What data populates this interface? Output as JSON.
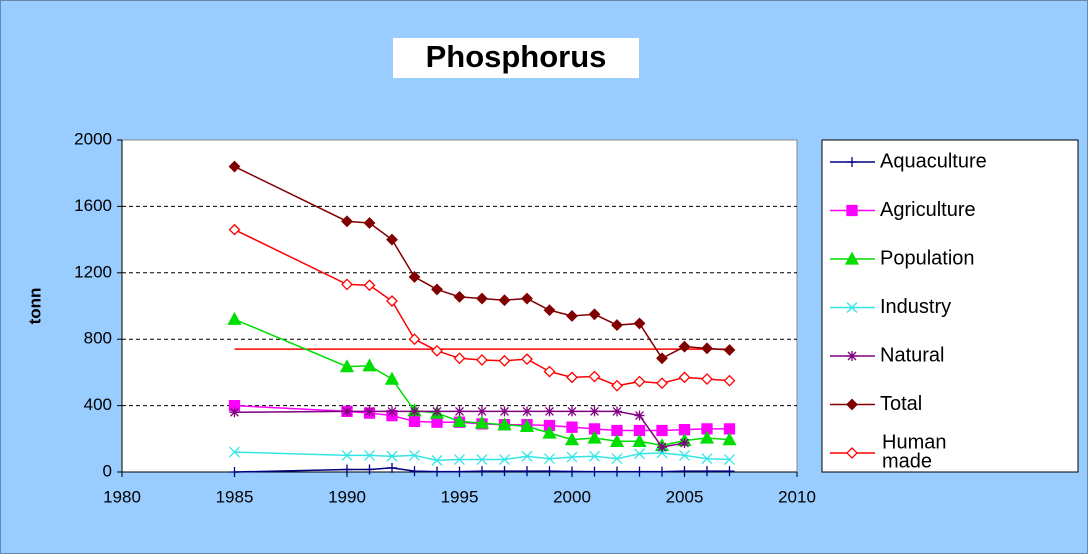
{
  "chart_data": {
    "type": "line",
    "title": "Phosphorus",
    "y_label": "tonn",
    "x": [
      1985,
      1990,
      1991,
      1992,
      1993,
      1994,
      1995,
      1996,
      1997,
      1998,
      1999,
      2000,
      2001,
      2002,
      2003,
      2004,
      2005,
      2006,
      2007
    ],
    "xlim": [
      1980,
      2010
    ],
    "xticks": [
      1980,
      1985,
      1990,
      1995,
      2000,
      2005,
      2010
    ],
    "ylim": [
      0,
      2000
    ],
    "yticks": [
      0,
      400,
      800,
      1200,
      1600,
      2000
    ],
    "grid": true,
    "legend": "right",
    "series": [
      {
        "name": "Aquaculture",
        "color": "#000080",
        "marker": "plus",
        "values": [
          0,
          15,
          15,
          25,
          5,
          2,
          2,
          5,
          5,
          5,
          5,
          3,
          2,
          2,
          2,
          2,
          5,
          5,
          5
        ]
      },
      {
        "name": "Agriculture",
        "color": "#ff00ff",
        "marker": "square",
        "values": [
          400,
          365,
          355,
          340,
          305,
          300,
          300,
          290,
          285,
          285,
          280,
          270,
          260,
          250,
          250,
          250,
          255,
          260,
          260
        ]
      },
      {
        "name": "Population",
        "color": "#00dd00",
        "marker": "triangle",
        "values": [
          920,
          635,
          640,
          560,
          370,
          355,
          305,
          295,
          285,
          275,
          235,
          195,
          205,
          185,
          185,
          160,
          190,
          205,
          195
        ]
      },
      {
        "name": "Industry",
        "color": "#33e6e6",
        "marker": "cross",
        "values": [
          120,
          100,
          100,
          95,
          100,
          70,
          75,
          75,
          75,
          95,
          80,
          90,
          95,
          80,
          110,
          115,
          100,
          80,
          75
        ]
      },
      {
        "name": "Natural",
        "color": "#800080",
        "marker": "star",
        "values": [
          360,
          365,
          365,
          365,
          365,
          365,
          365,
          365,
          365,
          365,
          365,
          365,
          365,
          365,
          340,
          150,
          175,
          null,
          null
        ]
      },
      {
        "name": "Total",
        "color": "#800000",
        "marker": "diamond",
        "values": [
          1840,
          1510,
          1500,
          1400,
          1175,
          1100,
          1055,
          1045,
          1035,
          1045,
          975,
          940,
          950,
          885,
          895,
          685,
          755,
          745,
          735
        ]
      },
      {
        "name": "Human made",
        "color": "#ff0000",
        "marker": "open-diamond",
        "values": [
          1460,
          1130,
          1125,
          1030,
          800,
          730,
          685,
          675,
          670,
          680,
          605,
          570,
          575,
          520,
          545,
          535,
          570,
          560,
          550
        ]
      }
    ],
    "reference_line": {
      "value": 740,
      "color": "#ff0000"
    }
  }
}
